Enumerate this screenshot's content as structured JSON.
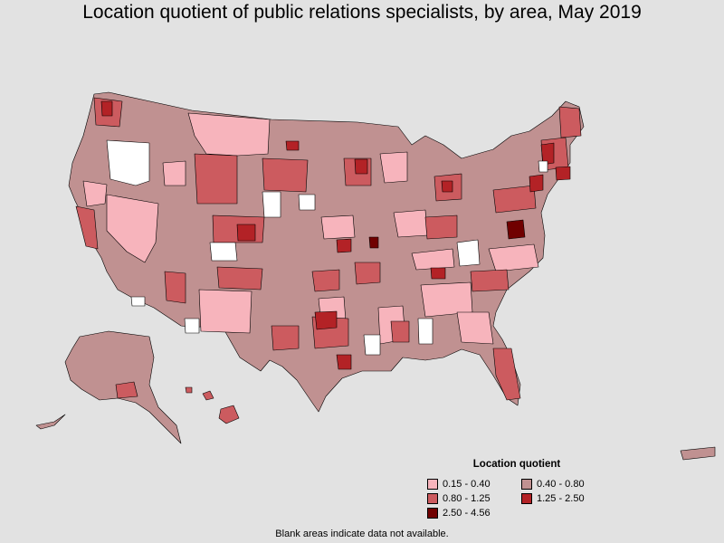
{
  "title": "Location quotient of public relations specialists, by area, May 2019",
  "legend": {
    "title": "Location quotient",
    "items": [
      {
        "label": "0.15 - 0.40",
        "color": "#f7b4bc"
      },
      {
        "label": "0.40 - 0.80",
        "color": "#c09191"
      },
      {
        "label": "0.80 - 1.25",
        "color": "#cc5b5f"
      },
      {
        "label": "1.25 - 2.50",
        "color": "#b32226"
      },
      {
        "label": "2.50 - 4.56",
        "color": "#700000"
      }
    ]
  },
  "note": "Blank areas indicate data not available.",
  "colors": {
    "background": "#e2e2e2",
    "no_data": "#ffffff",
    "border": "#000000"
  }
}
